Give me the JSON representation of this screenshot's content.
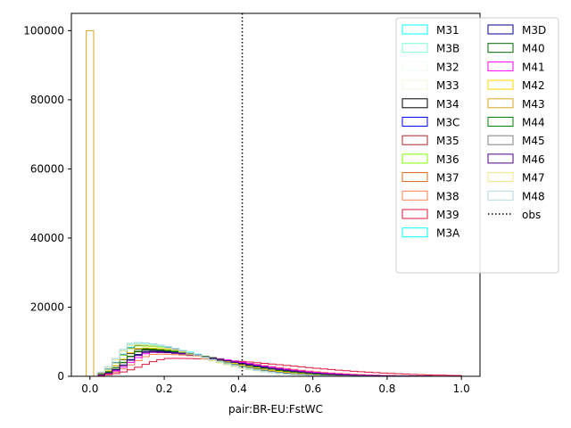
{
  "chart_data": {
    "type": "histogram",
    "xlabel": "pair:BR-EU:FstWC",
    "ylabel": "",
    "xlim": [
      -0.05,
      1.05
    ],
    "ylim": [
      0,
      105000
    ],
    "xticks": [
      "0.0",
      "0.2",
      "0.4",
      "0.6",
      "0.8",
      "1.0"
    ],
    "yticks": [
      "0",
      "20000",
      "40000",
      "60000",
      "80000",
      "100000"
    ],
    "xtick_values": [
      0,
      0.2,
      0.4,
      0.6,
      0.8,
      1.0
    ],
    "ytick_values": [
      0,
      20000,
      40000,
      60000,
      80000,
      100000
    ],
    "bin_width": 0.02,
    "grid": false,
    "legend_position": "top-right",
    "legend_columns": 2,
    "obs": {
      "label": "obs",
      "x": 0.41,
      "color": "#000000",
      "style": "dotted"
    },
    "series": [
      {
        "name": "M31",
        "color": "#00ffff",
        "center": 0.13,
        "peak": 9200,
        "spread": 0.085
      },
      {
        "name": "M3B",
        "color": "#7fffd4",
        "center": 0.12,
        "peak": 9500,
        "spread": 0.08
      },
      {
        "name": "M32",
        "color": "#f0fff0",
        "center": 0.12,
        "peak": 9000,
        "spread": 0.08
      },
      {
        "name": "M33",
        "color": "#f5f5dc",
        "center": 0.12,
        "peak": 9300,
        "spread": 0.08
      },
      {
        "name": "M34",
        "color": "#000000",
        "center": 0.14,
        "peak": 8000,
        "spread": 0.09
      },
      {
        "name": "M3C",
        "color": "#0000ff",
        "center": 0.16,
        "peak": 7200,
        "spread": 0.1
      },
      {
        "name": "M35",
        "color": "#a52a2a",
        "center": 0.15,
        "peak": 7600,
        "spread": 0.095
      },
      {
        "name": "M36",
        "color": "#7fff00",
        "center": 0.13,
        "peak": 8800,
        "spread": 0.085
      },
      {
        "name": "M37",
        "color": "#d2691e",
        "center": 0.16,
        "peak": 7100,
        "spread": 0.1
      },
      {
        "name": "M38",
        "color": "#ff7f50",
        "center": 0.18,
        "peak": 6400,
        "spread": 0.11
      },
      {
        "name": "M39",
        "color": "#dc143c",
        "center": 0.22,
        "peak": 5200,
        "spread": 0.14
      },
      {
        "name": "M3A",
        "color": "#00ffff",
        "center": 0.13,
        "peak": 9100,
        "spread": 0.085
      },
      {
        "name": "M3D",
        "color": "#00008b",
        "center": 0.16,
        "peak": 7300,
        "spread": 0.1
      },
      {
        "name": "M40",
        "color": "#006400",
        "center": 0.15,
        "peak": 7700,
        "spread": 0.095
      },
      {
        "name": "M41",
        "color": "#ff00ff",
        "center": 0.17,
        "peak": 6900,
        "spread": 0.105
      },
      {
        "name": "M42",
        "color": "#ffd700",
        "center": 0.14,
        "peak": 8200,
        "spread": 0.09
      },
      {
        "name": "M43",
        "color": "#daa520",
        "center": 0.0,
        "peak": 100000,
        "spread": 0.0,
        "spike": true
      },
      {
        "name": "M44",
        "color": "#008000",
        "center": 0.15,
        "peak": 7800,
        "spread": 0.095
      },
      {
        "name": "M45",
        "color": "#808080",
        "center": 0.13,
        "peak": 9000,
        "spread": 0.085
      },
      {
        "name": "M46",
        "color": "#4b0082",
        "center": 0.16,
        "peak": 7000,
        "spread": 0.1
      },
      {
        "name": "M47",
        "color": "#f0e68c",
        "center": 0.12,
        "peak": 9200,
        "spread": 0.08
      },
      {
        "name": "M48",
        "color": "#add8e6",
        "center": 0.12,
        "peak": 9800,
        "spread": 0.08
      }
    ]
  }
}
